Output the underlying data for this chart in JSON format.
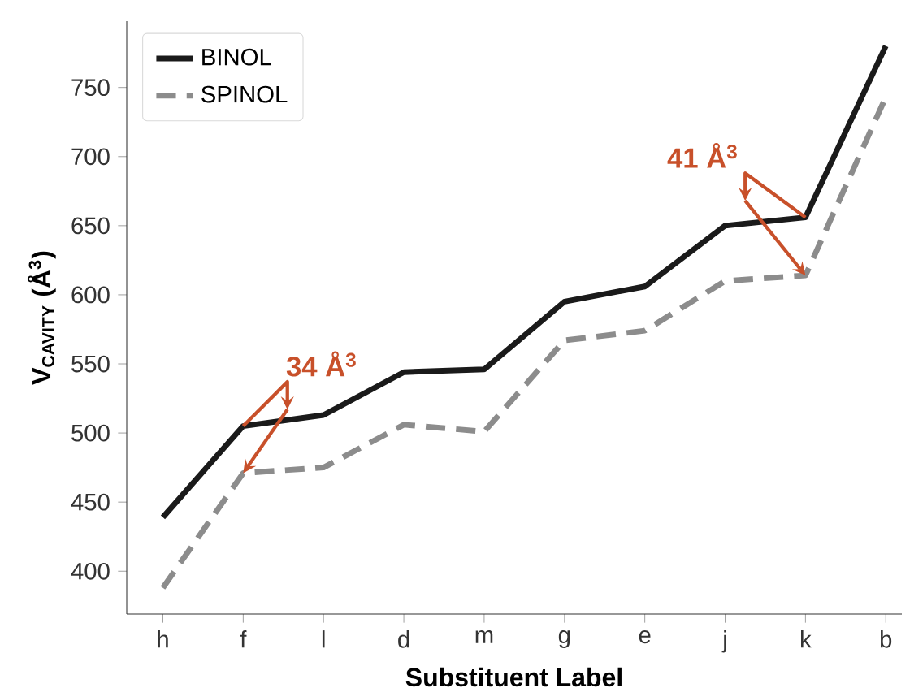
{
  "chart_data": {
    "type": "line",
    "xlabel": "Substituent Label",
    "ylabel": "V$_{CAVITY}$ (Å$^{3}$)",
    "categories": [
      "h",
      "f",
      "l",
      "d",
      "m",
      "g",
      "e",
      "j",
      "k",
      "b"
    ],
    "series": [
      {
        "name": "BINOL",
        "color": "#1a1a1a",
        "line_style": "solid",
        "values": [
          439,
          505,
          513,
          544,
          546,
          595,
          606,
          650,
          656,
          780
        ]
      },
      {
        "name": "SPINOL",
        "color": "#8c8c8c",
        "line_style": "dashed",
        "values": [
          388,
          471,
          475,
          506,
          501,
          567,
          574,
          610,
          614,
          743
        ]
      }
    ],
    "ylim": [
      369,
      798
    ],
    "yticks": [
      400,
      450,
      500,
      550,
      600,
      650,
      700,
      750
    ],
    "legend": "top left",
    "grid": false,
    "marker": "none",
    "annotations": [
      {
        "text": "34 Å$^{3}$",
        "x": "f",
        "y": 505
      },
      {
        "text": "41 Å$^{3}$",
        "x": "k",
        "y": 656
      }
    ]
  }
}
